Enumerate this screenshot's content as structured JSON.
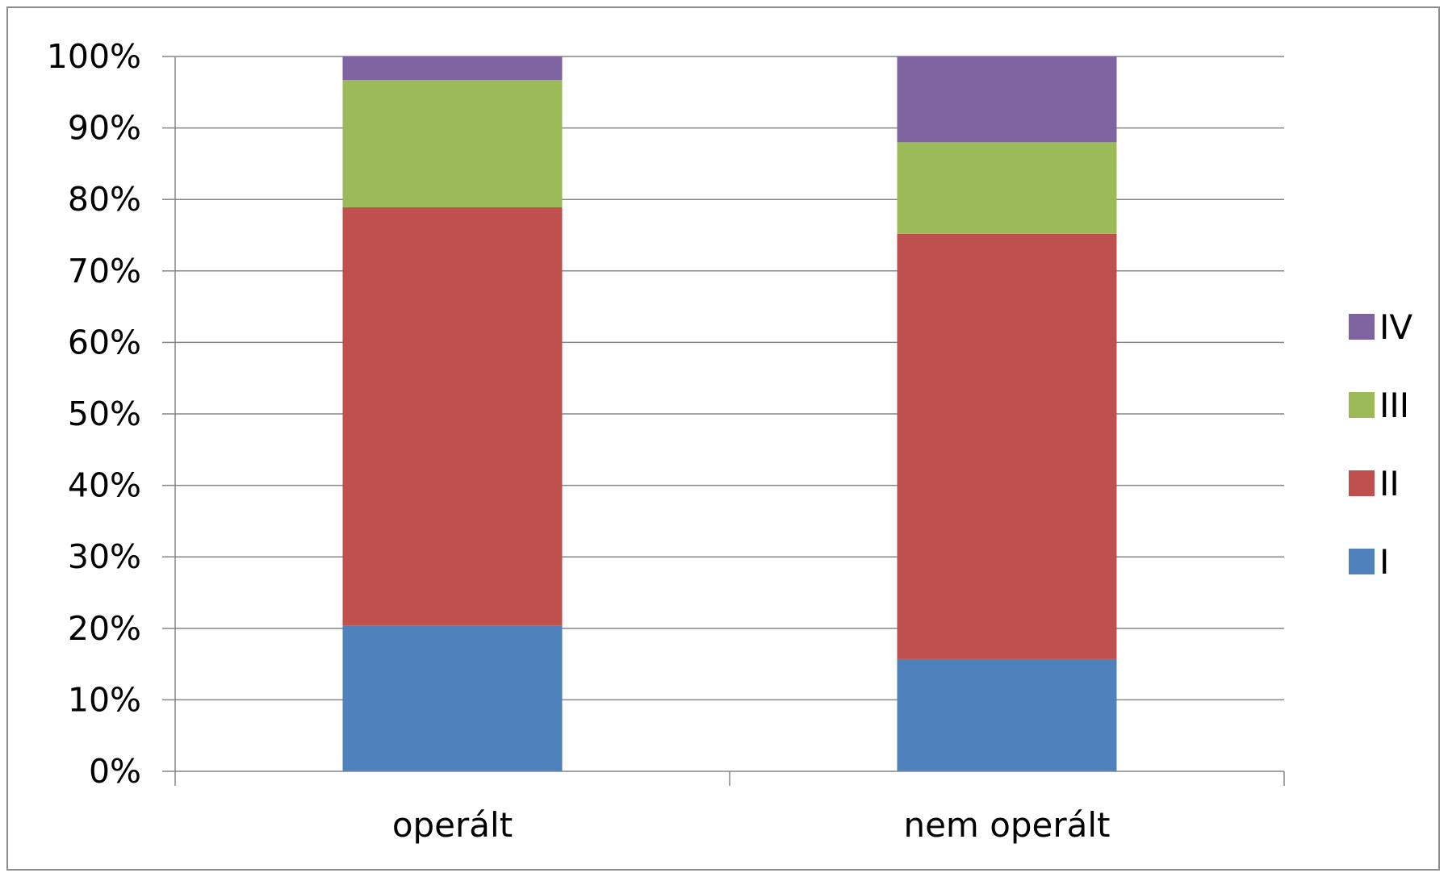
{
  "chart_data": {
    "type": "bar",
    "stacked": true,
    "percent_stacked": true,
    "categories": [
      "operált",
      "nem operált"
    ],
    "series": [
      {
        "name": "I",
        "values": [
          20.4,
          15.7
        ],
        "color": "#4f81bd"
      },
      {
        "name": "II",
        "values": [
          58.5,
          59.5
        ],
        "color": "#c0504d"
      },
      {
        "name": "III",
        "values": [
          17.8,
          12.8
        ],
        "color": "#9bbb59"
      },
      {
        "name": "IV",
        "values": [
          3.3,
          12.0
        ],
        "color": "#8064a2"
      }
    ],
    "y_ticks": [
      "0%",
      "10%",
      "20%",
      "30%",
      "40%",
      "50%",
      "60%",
      "70%",
      "80%",
      "90%",
      "100%"
    ],
    "ylim": [
      0,
      100
    ],
    "grid": true,
    "legend_position": "right",
    "legend_order": [
      "IV",
      "III",
      "II",
      "I"
    ],
    "gridline_color": "#868686",
    "axis_color": "#868686"
  }
}
